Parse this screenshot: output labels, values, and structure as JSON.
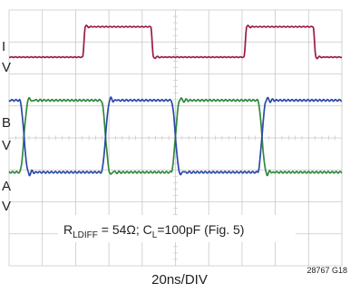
{
  "chart_data": {
    "type": "line",
    "xlabel": "20ns/DIV",
    "figure_id": "28767 G18",
    "annotation": {
      "sym": "R",
      "sub1": "LDIFF",
      "mid": " = 54Ω; C",
      "sub2": "L",
      "tail": "=100pF (Fig. 5)"
    },
    "channel_labels": [
      "I",
      "V",
      "B",
      "V",
      "A",
      "V"
    ],
    "colors": {
      "I": "#9c1a45",
      "B": "#2b4aa8",
      "A": "#2f8a3c",
      "grid": "#c8c8c8"
    },
    "divisions": {
      "x": 10,
      "y": 8
    },
    "series": [
      {
        "key": "I",
        "center_div": 1,
        "amplitude_div": 0.95,
        "type": "clock",
        "edges": [
          {
            "t": 2.25,
            "dir": "rise"
          },
          {
            "t": 4.3,
            "dir": "fall"
          },
          {
            "t": 7.1,
            "dir": "rise"
          },
          {
            "t": 9.18,
            "dir": "fall"
          }
        ],
        "init_level": 0,
        "edge_width": 0.08
      },
      {
        "key": "B",
        "center_div": 3.95,
        "amplitude_div": 2.25,
        "type": "diff",
        "edges": [
          {
            "t": 0.45,
            "dir": "fall"
          },
          {
            "t": 2.9,
            "dir": "rise"
          },
          {
            "t": 5.0,
            "dir": "fall"
          },
          {
            "t": 7.6,
            "dir": "rise"
          }
        ],
        "init_level": 1,
        "edge_width": 0.26
      },
      {
        "key": "A",
        "center_div": 3.95,
        "amplitude_div": 2.25,
        "type": "diff",
        "edges": [
          {
            "t": 0.45,
            "dir": "rise"
          },
          {
            "t": 2.9,
            "dir": "fall"
          },
          {
            "t": 5.0,
            "dir": "rise"
          },
          {
            "t": 7.6,
            "dir": "fall"
          }
        ],
        "init_level": 0,
        "edge_width": 0.26
      }
    ]
  }
}
